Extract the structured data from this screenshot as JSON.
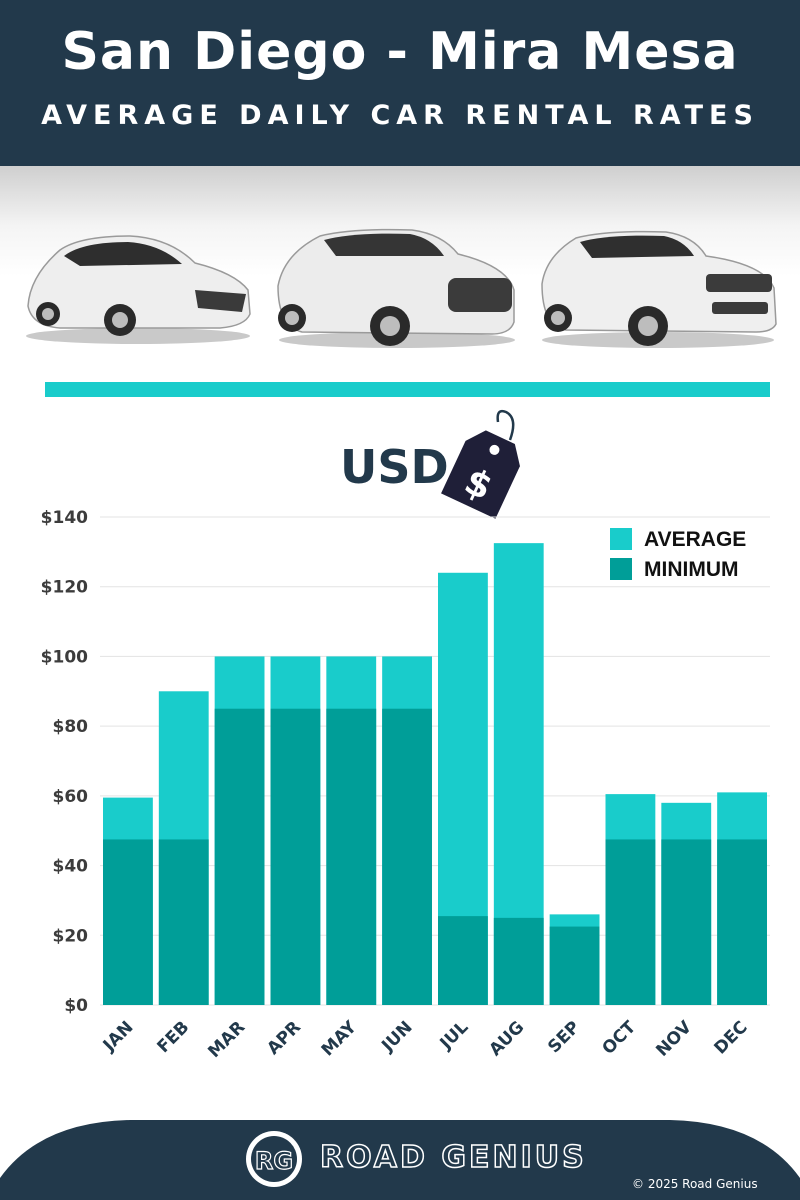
{
  "header": {
    "title": "San Diego - Mira Mesa",
    "subtitle": "AVERAGE DAILY CAR RENTAL RATES"
  },
  "currency_label": "USD",
  "price_tag_symbol": "$",
  "colors": {
    "header_bg": "#22394b",
    "average": "#19cccb",
    "minimum": "#009e98",
    "divider": "#19cccb",
    "axis_text": "#3c3c3c",
    "month_text": "#22394b"
  },
  "chart_data": {
    "type": "bar",
    "title": "",
    "xlabel": "",
    "ylabel": "",
    "categories": [
      "JAN",
      "FEB",
      "MAR",
      "APR",
      "MAY",
      "JUN",
      "JUL",
      "AUG",
      "SEP",
      "OCT",
      "NOV",
      "DEC"
    ],
    "series": [
      {
        "name": "AVERAGE",
        "values": [
          59.5,
          90,
          100,
          100,
          100,
          100,
          124,
          132.5,
          26,
          60.5,
          58,
          61
        ]
      },
      {
        "name": "MINIMUM",
        "values": [
          47.5,
          47.5,
          85,
          85,
          85,
          85,
          25.5,
          25,
          22.5,
          47.5,
          47.5,
          47.5
        ]
      }
    ],
    "overlay": true,
    "ylim": [
      0,
      140
    ],
    "yticks": [
      0,
      20,
      40,
      60,
      80,
      100,
      120,
      140
    ],
    "ytick_labels": [
      "$0",
      "$20",
      "$40",
      "$60",
      "$80",
      "$100",
      "$120",
      "$140"
    ],
    "grid": true,
    "legend_position": "top-right"
  },
  "footer": {
    "logo_letters": "RG",
    "brand": "ROAD GENIUS",
    "copyright": "© 2025 Road Genius"
  }
}
